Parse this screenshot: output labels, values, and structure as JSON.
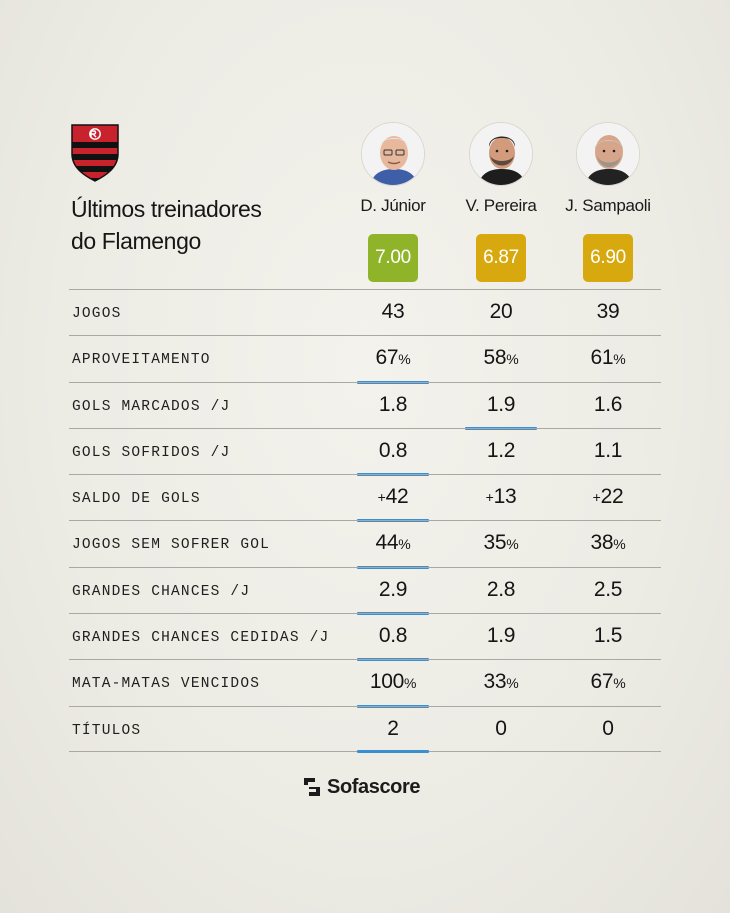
{
  "header": {
    "crest_icon": "flamengo-crest-icon",
    "title_line1": "Últimos treinadores",
    "title_line2": "do Flamengo"
  },
  "coaches": [
    {
      "name": "D. Júnior",
      "rating": "7.00",
      "rating_color": "#8fb42a"
    },
    {
      "name": "V. Pereira",
      "rating": "6.87",
      "rating_color": "#d8a90e"
    },
    {
      "name": "J. Sampaoli",
      "rating": "6.90",
      "rating_color": "#d8a90e"
    }
  ],
  "accent_color": "#3a8fd0",
  "rows": [
    {
      "label": "JOGOS",
      "values": [
        {
          "main": "43",
          "suffix": "",
          "prefix": ""
        },
        {
          "main": "20",
          "suffix": "",
          "prefix": ""
        },
        {
          "main": "39",
          "suffix": "",
          "prefix": ""
        }
      ],
      "best": null
    },
    {
      "label": "APROVEITAMENTO",
      "values": [
        {
          "main": "67",
          "suffix": "%",
          "prefix": ""
        },
        {
          "main": "58",
          "suffix": "%",
          "prefix": ""
        },
        {
          "main": "61",
          "suffix": "%",
          "prefix": ""
        }
      ],
      "best": 0
    },
    {
      "label": "GOLS MARCADOS /J",
      "values": [
        {
          "main": "1.8",
          "suffix": "",
          "prefix": ""
        },
        {
          "main": "1.9",
          "suffix": "",
          "prefix": ""
        },
        {
          "main": "1.6",
          "suffix": "",
          "prefix": ""
        }
      ],
      "best": 1
    },
    {
      "label": "GOLS SOFRIDOS /J",
      "values": [
        {
          "main": "0.8",
          "suffix": "",
          "prefix": ""
        },
        {
          "main": "1.2",
          "suffix": "",
          "prefix": ""
        },
        {
          "main": "1.1",
          "suffix": "",
          "prefix": ""
        }
      ],
      "best": 0
    },
    {
      "label": "SALDO DE GOLS",
      "values": [
        {
          "main": "42",
          "suffix": "",
          "prefix": "+"
        },
        {
          "main": "13",
          "suffix": "",
          "prefix": "+"
        },
        {
          "main": "22",
          "suffix": "",
          "prefix": "+"
        }
      ],
      "best": 0
    },
    {
      "label": "JOGOS SEM SOFRER GOL",
      "values": [
        {
          "main": "44",
          "suffix": "%",
          "prefix": ""
        },
        {
          "main": "35",
          "suffix": "%",
          "prefix": ""
        },
        {
          "main": "38",
          "suffix": "%",
          "prefix": ""
        }
      ],
      "best": 0
    },
    {
      "label": "GRANDES CHANCES /J",
      "values": [
        {
          "main": "2.9",
          "suffix": "",
          "prefix": ""
        },
        {
          "main": "2.8",
          "suffix": "",
          "prefix": ""
        },
        {
          "main": "2.5",
          "suffix": "",
          "prefix": ""
        }
      ],
      "best": 0
    },
    {
      "label": "GRANDES CHANCES CEDIDAS /J",
      "values": [
        {
          "main": "0.8",
          "suffix": "",
          "prefix": ""
        },
        {
          "main": "1.9",
          "suffix": "",
          "prefix": ""
        },
        {
          "main": "1.5",
          "suffix": "",
          "prefix": ""
        }
      ],
      "best": 0
    },
    {
      "label": "MATA-MATAS VENCIDOS",
      "values": [
        {
          "main": "100",
          "suffix": "%",
          "prefix": ""
        },
        {
          "main": "33",
          "suffix": "%",
          "prefix": ""
        },
        {
          "main": "67",
          "suffix": "%",
          "prefix": ""
        }
      ],
      "best": 0
    },
    {
      "label": "TÍTULOS",
      "values": [
        {
          "main": "2",
          "suffix": "",
          "prefix": ""
        },
        {
          "main": "0",
          "suffix": "",
          "prefix": ""
        },
        {
          "main": "0",
          "suffix": "",
          "prefix": ""
        }
      ],
      "best": 0
    }
  ],
  "footer": {
    "brand_icon": "sofascore-logo-icon",
    "brand": "Sofascore"
  }
}
